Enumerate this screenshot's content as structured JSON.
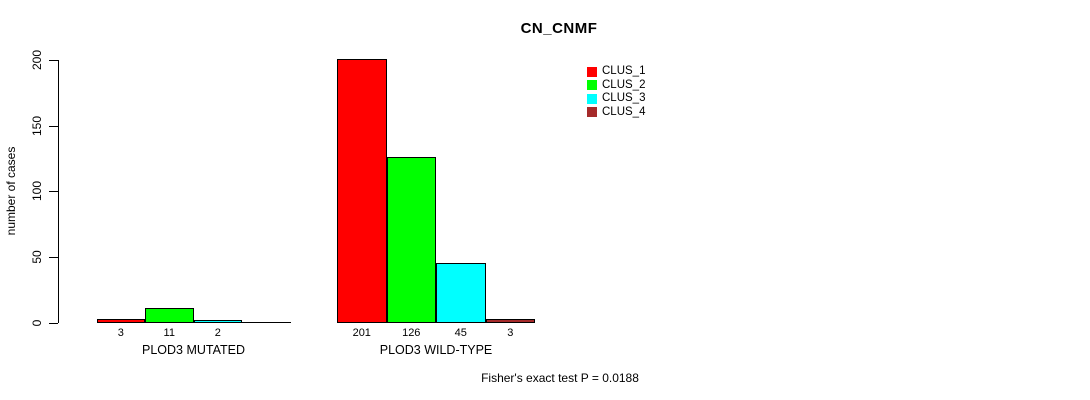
{
  "title": "CN_CNMF",
  "footer": "Fisher's exact test P = 0.0188",
  "chart_data": {
    "type": "bar",
    "title": "CN_CNMF",
    "xlabel": "",
    "ylabel": "number of cases",
    "ylim": [
      0,
      200
    ],
    "yticks": [
      0,
      50,
      100,
      150,
      200
    ],
    "grid": false,
    "legend_position": "top-right",
    "bar_border_color": "#000000",
    "series": [
      {
        "name": "CLUS_1",
        "color": "#FF0000"
      },
      {
        "name": "CLUS_2",
        "color": "#00FF00"
      },
      {
        "name": "CLUS_3",
        "color": "#00FFFF"
      },
      {
        "name": "CLUS_4",
        "color": "#A52A2A"
      }
    ],
    "groups": [
      {
        "label": "PLOD3 MUTATED",
        "values": [
          3,
          11,
          2,
          0
        ],
        "bar_labels": [
          "3",
          "11",
          "2",
          ""
        ]
      },
      {
        "label": "PLOD3 WILD-TYPE",
        "values": [
          201,
          126,
          45,
          3
        ],
        "bar_labels": [
          "201",
          "126",
          "45",
          "3"
        ]
      }
    ],
    "annotation": "Fisher's exact test P = 0.0188"
  }
}
